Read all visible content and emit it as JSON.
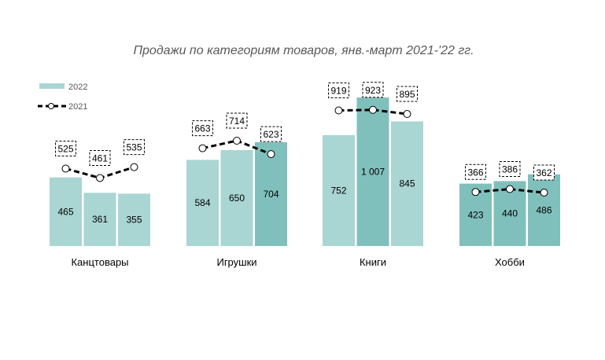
{
  "chart_data": {
    "type": "bar",
    "title": "Продажи по категориям товаров, янв.-март 2021-'22 гг.",
    "categories": [
      "Канцтовары",
      "Игрушки",
      "Книги",
      "Хобби"
    ],
    "series": [
      {
        "name": "2022",
        "type": "bar",
        "values": [
          [
            465,
            361,
            355
          ],
          [
            584,
            650,
            704
          ],
          [
            752,
            1007,
            845
          ],
          [
            423,
            440,
            486
          ]
        ],
        "labels": [
          [
            "465",
            "361",
            "355"
          ],
          [
            "584",
            "650",
            "704"
          ],
          [
            "752",
            "1 007",
            "845"
          ],
          [
            "423",
            "440",
            "486"
          ]
        ]
      },
      {
        "name": "2021",
        "type": "line",
        "values": [
          [
            525,
            461,
            535
          ],
          [
            663,
            714,
            623
          ],
          [
            919,
            923,
            895
          ],
          [
            366,
            386,
            362
          ]
        ]
      }
    ],
    "colors": {
      "bar_light": "#a9d5d3",
      "bar_dark": "#80c0bc",
      "line": "#000000"
    },
    "note_highlight": "bars where 2022 exceeds 2021 are darker",
    "ylim": [
      0,
      1007
    ],
    "legend_position": "top-left",
    "grid": false
  }
}
